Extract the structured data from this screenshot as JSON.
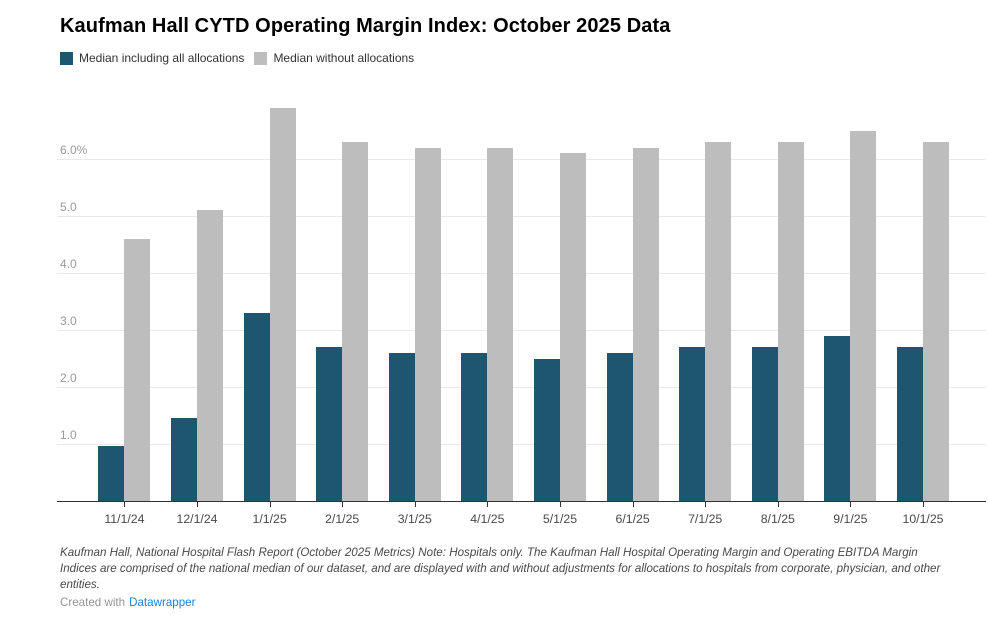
{
  "title": "Kaufman Hall CYTD Operating Margin Index: October 2025 Data",
  "legend": [
    {
      "label": "Median including all allocations",
      "color": "#1e5670"
    },
    {
      "label": "Median without allocations",
      "color": "#bdbdbd"
    }
  ],
  "footnote_lines": [
    "Kaufman Hall, National Hospital Flash Report (October 2025 Metrics) Note: Hospitals only. The Kaufman Hall Hospital Operating Margin and Operating EBITDA Margin",
    "Indices are comprised of the national median of our dataset, and are displayed with and without adjustments for allocations to hospitals from corporate, physician, and other",
    "entities."
  ],
  "attribution": {
    "text": "Created with",
    "link_label": "Datawrapper",
    "link_color": "#1f7fd1"
  },
  "chart_data": {
    "type": "bar",
    "title": "Kaufman Hall CYTD Operating Margin Index: October 2025 Data",
    "categories": [
      "11/1/24",
      "12/1/24",
      "1/1/25",
      "2/1/25",
      "3/1/25",
      "4/1/25",
      "5/1/25",
      "6/1/25",
      "7/1/25",
      "8/1/25",
      "9/1/25",
      "10/1/25"
    ],
    "series": [
      {
        "name": "Median including all allocations",
        "color": "#1e5670",
        "values": [
          0.97,
          1.45,
          3.3,
          2.7,
          2.6,
          2.6,
          2.5,
          2.6,
          2.7,
          2.7,
          2.9,
          2.7
        ]
      },
      {
        "name": "Median without allocations",
        "color": "#bdbdbd",
        "values": [
          4.6,
          5.1,
          6.9,
          6.3,
          6.2,
          6.2,
          6.1,
          6.2,
          6.3,
          6.3,
          6.5,
          6.3
        ]
      }
    ],
    "unit": "%",
    "ylabel": "",
    "xlabel": "",
    "ylim": [
      0,
      7.1
    ],
    "yticks": [
      {
        "v": 1,
        "label": "1.0"
      },
      {
        "v": 2,
        "label": "2.0"
      },
      {
        "v": 3,
        "label": "3.0"
      },
      {
        "v": 4,
        "label": "4.0"
      },
      {
        "v": 5,
        "label": "5.0"
      },
      {
        "v": 6,
        "label": "6.0%"
      }
    ],
    "grid": "horizontal",
    "legend_position": "top-left"
  }
}
